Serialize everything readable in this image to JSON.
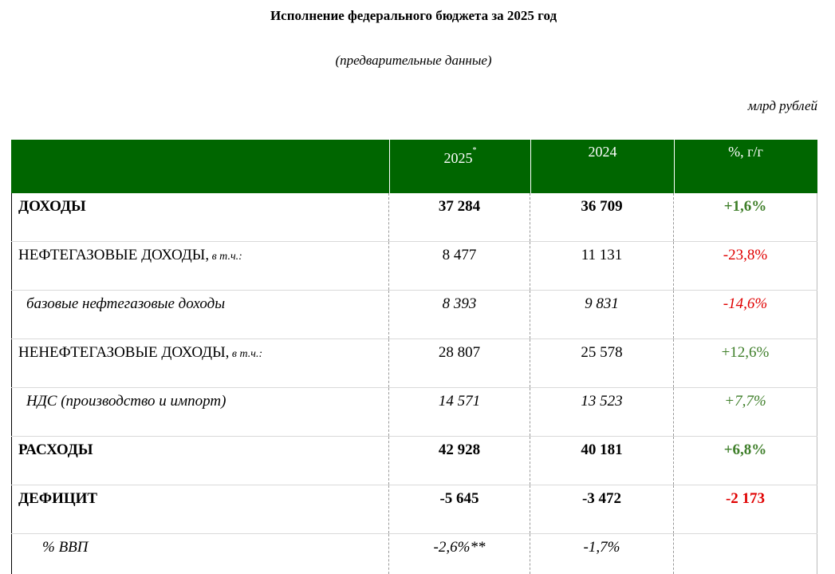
{
  "title": "Исполнение федерального бюджета за 2025 год",
  "subtitle": "(предварительные данные)",
  "units": "млрд рублей",
  "colors": {
    "header_bg": "#006600",
    "positive": "#3f7f2a",
    "negative": "#e00000"
  },
  "header": {
    "col_2025": "2025",
    "col_2025_mark": "*",
    "col_2024": "2024",
    "col_change": "%, г/г"
  },
  "rows": [
    {
      "label": "ДОХОДЫ",
      "note": "",
      "v2025": "37 284",
      "v2024": "36 709",
      "change": "+1,6%"
    },
    {
      "label": "НЕФТЕГАЗОВЫЕ ДОХОДЫ,",
      "note": " в т.ч.:",
      "v2025": "8 477",
      "v2024": "11 131",
      "change": "-23,8%"
    },
    {
      "label": "базовые нефтегазовые доходы",
      "note": "",
      "v2025": "8 393",
      "v2024": "9 831",
      "change": "-14,6%"
    },
    {
      "label": "НЕНЕФТЕГАЗОВЫЕ ДОХОДЫ,",
      "note": " в т.ч.:",
      "v2025": "28 807",
      "v2024": "25 578",
      "change": "+12,6%"
    },
    {
      "label": "НДС (производство и импорт)",
      "note": "",
      "v2025": "14 571",
      "v2024": "13 523",
      "change": "+7,7%"
    },
    {
      "label": "РАСХОДЫ",
      "note": "",
      "v2025": "42 928",
      "v2024": "40 181",
      "change": "+6,8%"
    },
    {
      "label": "ДЕФИЦИТ",
      "note": "",
      "v2025": "-5 645",
      "v2024": "-3 472",
      "change": "-2 173"
    },
    {
      "label": "% ВВП",
      "note": "",
      "v2025": "-2,6%**",
      "v2024": "-1,7%",
      "change": ""
    }
  ]
}
